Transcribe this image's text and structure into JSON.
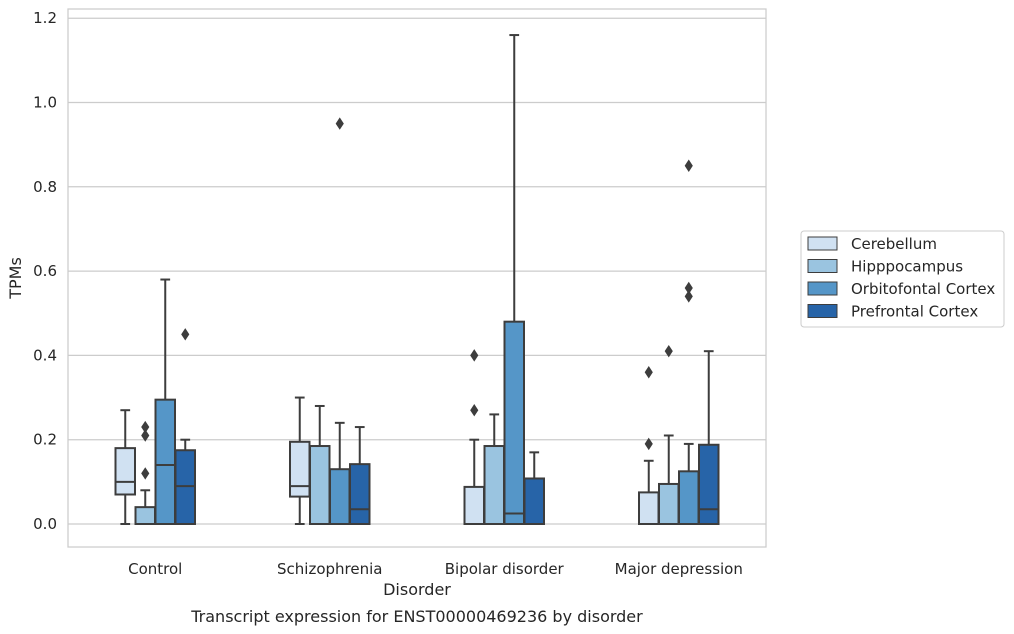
{
  "chart_data": {
    "type": "box",
    "caption": "Transcript expression for ENST00000469236 by disorder",
    "xlabel": "Disorder",
    "ylabel": "TPMs",
    "ylim": [
      -0.055,
      1.22
    ],
    "yticks": [
      "0.0",
      "0.2",
      "0.4",
      "0.6",
      "0.8",
      "1.0",
      "1.2"
    ],
    "grid": "horizontal",
    "legend_position": "right",
    "categories": [
      "Control",
      "Schizophrenia",
      "Bipolar disorder",
      "Major depression"
    ],
    "series": [
      {
        "name": "Cerebellum",
        "color": "#d0e1f2",
        "boxes": [
          {
            "whislo": 0.0,
            "q1": 0.07,
            "med": 0.1,
            "q3": 0.18,
            "whishi": 0.27,
            "fliers": []
          },
          {
            "whislo": 0.0,
            "q1": 0.065,
            "med": 0.09,
            "q3": 0.195,
            "whishi": 0.3,
            "fliers": []
          },
          {
            "whislo": 0.0,
            "q1": 0.0,
            "med": 0.0,
            "q3": 0.088,
            "whishi": 0.2,
            "fliers": [
              0.27,
              0.4
            ]
          },
          {
            "whislo": 0.0,
            "q1": 0.0,
            "med": 0.0,
            "q3": 0.075,
            "whishi": 0.15,
            "fliers": [
              0.19,
              0.36
            ]
          }
        ]
      },
      {
        "name": "Hipppocampus",
        "color": "#9ac4e0",
        "boxes": [
          {
            "whislo": 0.0,
            "q1": 0.0,
            "med": 0.0,
            "q3": 0.04,
            "whishi": 0.08,
            "fliers": [
              0.12,
              0.21,
              0.23
            ]
          },
          {
            "whislo": 0.0,
            "q1": 0.0,
            "med": 0.0,
            "q3": 0.185,
            "whishi": 0.28,
            "fliers": []
          },
          {
            "whislo": 0.0,
            "q1": 0.0,
            "med": 0.0,
            "q3": 0.185,
            "whishi": 0.26,
            "fliers": []
          },
          {
            "whislo": 0.0,
            "q1": 0.0,
            "med": 0.0,
            "q3": 0.095,
            "whishi": 0.21,
            "fliers": [
              0.41
            ]
          }
        ]
      },
      {
        "name": "Orbitofontal Cortex",
        "color": "#5596c8",
        "boxes": [
          {
            "whislo": 0.0,
            "q1": 0.0,
            "med": 0.14,
            "q3": 0.295,
            "whishi": 0.58,
            "fliers": []
          },
          {
            "whislo": 0.0,
            "q1": 0.0,
            "med": 0.0,
            "q3": 0.13,
            "whishi": 0.24,
            "fliers": [
              0.95
            ]
          },
          {
            "whislo": 0.0,
            "q1": 0.0,
            "med": 0.025,
            "q3": 0.48,
            "whishi": 1.16,
            "fliers": []
          },
          {
            "whislo": 0.0,
            "q1": 0.0,
            "med": 0.0,
            "q3": 0.125,
            "whishi": 0.19,
            "fliers": [
              0.54,
              0.56,
              0.85
            ]
          }
        ]
      },
      {
        "name": "Prefrontal Cortex",
        "color": "#2764a8",
        "boxes": [
          {
            "whislo": 0.0,
            "q1": 0.0,
            "med": 0.09,
            "q3": 0.175,
            "whishi": 0.2,
            "fliers": [
              0.45
            ]
          },
          {
            "whislo": 0.0,
            "q1": 0.0,
            "med": 0.035,
            "q3": 0.142,
            "whishi": 0.23,
            "fliers": []
          },
          {
            "whislo": 0.0,
            "q1": 0.0,
            "med": 0.0,
            "q3": 0.108,
            "whishi": 0.17,
            "fliers": []
          },
          {
            "whislo": 0.0,
            "q1": 0.0,
            "med": 0.035,
            "q3": 0.188,
            "whishi": 0.41,
            "fliers": []
          }
        ]
      }
    ]
  }
}
